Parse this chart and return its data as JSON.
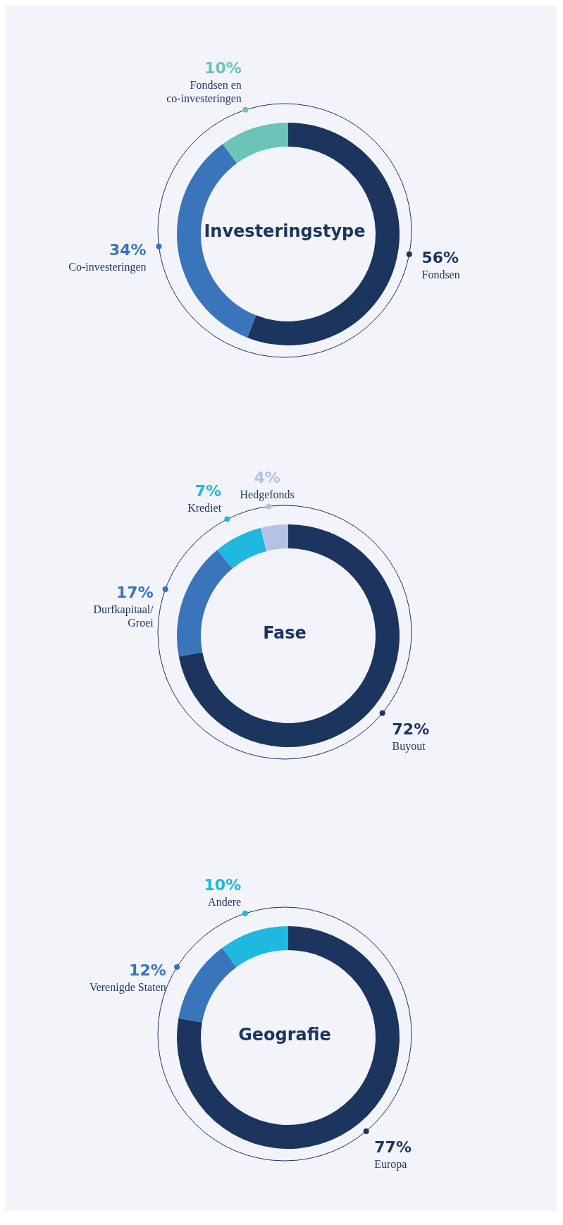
{
  "chart_data": [
    {
      "type": "donut",
      "title": "Investeringstype",
      "categories": [
        "Fondsen",
        "Co-investeringen",
        "Fondsen en co-investeringen"
      ],
      "values": [
        56,
        34,
        10
      ],
      "value_labels": [
        "56%",
        "34%",
        "10%"
      ],
      "colors": [
        "#1b355e",
        "#3a74ba",
        "#6cc3b8"
      ]
    },
    {
      "type": "donut",
      "title": "Fase",
      "categories": [
        "Buyout",
        "Durfkapitaal/ Groei",
        "Krediet",
        "Hedgefonds"
      ],
      "values": [
        72,
        17,
        7,
        4
      ],
      "value_labels": [
        "72%",
        "17%",
        "7%",
        "4%"
      ],
      "colors": [
        "#1b355e",
        "#3a74ba",
        "#1fb8de",
        "#b5c2e3"
      ]
    },
    {
      "type": "donut",
      "title": "Geografie",
      "categories": [
        "Europa",
        "Verenigde Staten",
        "Andere"
      ],
      "values": [
        77,
        12,
        10
      ],
      "value_labels": [
        "77%",
        "12%",
        "10%"
      ],
      "colors": [
        "#1b355e",
        "#3a74ba",
        "#1fb8de"
      ]
    }
  ]
}
